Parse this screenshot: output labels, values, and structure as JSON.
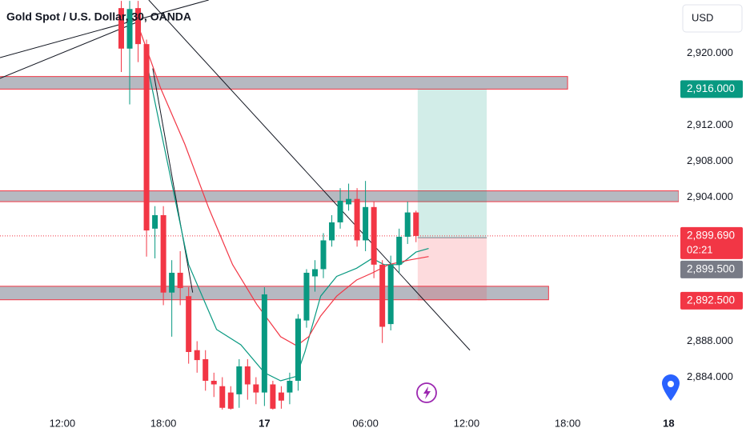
{
  "chart_data": {
    "type": "candlestick",
    "title": "Gold Spot / U.S. Dollar, 30, OANDA",
    "currency": "USD",
    "up_color": "#089981",
    "down_color": "#f23645",
    "xlim": [
      8.3,
      48.6
    ],
    "ylim": [
      2880.4,
      2925.9
    ],
    "xticks": [
      {
        "value": 12,
        "label": "12:00"
      },
      {
        "value": 18,
        "label": "18:00"
      },
      {
        "value": 24,
        "label": "17"
      },
      {
        "value": 30,
        "label": "06:00"
      },
      {
        "value": 36,
        "label": "12:00"
      },
      {
        "value": 42,
        "label": "18:00"
      },
      {
        "value": 48,
        "label": "18"
      }
    ],
    "yticks": [
      {
        "value": 2884,
        "label": "2,884.000"
      },
      {
        "value": 2888,
        "label": "2,888.000"
      },
      {
        "value": 2904,
        "label": "2,904.000"
      },
      {
        "value": 2908,
        "label": "2,908.000"
      },
      {
        "value": 2912,
        "label": "2,912.000"
      },
      {
        "value": 2920,
        "label": "2,920.000"
      }
    ],
    "candles": {
      "x": [
        15.5,
        16,
        16.5,
        17,
        17.5,
        18,
        18.5,
        19,
        19.5,
        20,
        20.5,
        21,
        21.5,
        22,
        22.5,
        23,
        23.5,
        24,
        24.5,
        25,
        25.5,
        26,
        26.5,
        27,
        27.5,
        28,
        28.5,
        29,
        29.5,
        30,
        30.5,
        31,
        31.5,
        32,
        32.5,
        33
      ],
      "open": [
        2925,
        2920.5,
        2925,
        2921,
        2900.5,
        2902,
        2893.4,
        2895.6,
        2893,
        2887,
        2886,
        2883.6,
        2883,
        2882.3,
        2882.1,
        2885.2,
        2883.2,
        2882.3,
        2883.2,
        2882.3,
        2882.3,
        2883.6,
        2890.3,
        2895.2,
        2896,
        2899.2,
        2901.2,
        2903.2,
        2903.8,
        2899.2,
        2902.9,
        2896.5,
        2889.9,
        2896.5,
        2899.6,
        2902.3
      ],
      "high": [
        2925.8,
        2925.8,
        2925.8,
        2921.5,
        2903,
        2903,
        2897,
        2898,
        2894,
        2888,
        2887,
        2884.5,
        2884,
        2883,
        2886,
        2886,
        2884,
        2894,
        2883.6,
        2883,
        2884.5,
        2891,
        2896,
        2897,
        2900,
        2902,
        2905,
        2905.5,
        2905,
        2905.8,
        2903.5,
        2897,
        2897.5,
        2900.5,
        2903.5,
        2902.5
      ],
      "low": [
        2917.9,
        2914.3,
        2919,
        2897.4,
        2897.2,
        2892,
        2888.5,
        2892,
        2885.5,
        2884.5,
        2882.5,
        2881.8,
        2880.4,
        2880.4,
        2880.6,
        2881.5,
        2881,
        2880.8,
        2880.4,
        2880.5,
        2881,
        2882.5,
        2889.5,
        2893.5,
        2895,
        2898.5,
        2900.5,
        2902.5,
        2898.5,
        2898,
        2895,
        2887.8,
        2889.2,
        2895.5,
        2898.8,
        2899
      ],
      "close": [
        2920.5,
        2924.9,
        2921,
        2900.3,
        2902,
        2893.4,
        2895.6,
        2893.9,
        2886.8,
        2885.9,
        2883.6,
        2883.2,
        2880.6,
        2880.5,
        2885.2,
        2883.2,
        2882.3,
        2893.2,
        2880.5,
        2881.4,
        2883.6,
        2890.5,
        2895.6,
        2896,
        2899.2,
        2901.2,
        2903.6,
        2903.8,
        2899.2,
        2902.9,
        2896.5,
        2889.6,
        2896.5,
        2899.6,
        2902.3,
        2899.69
      ]
    },
    "moving_averages": [
      {
        "color": "#089981",
        "x": [
          17.13,
          19.5,
          21.16,
          22.6,
          24.0,
          24.96,
          25.9,
          26.4,
          27.34,
          28.29,
          29.47,
          30.4,
          31.1,
          32.06,
          33.0,
          33.75
        ],
        "values": [
          2917.9,
          2896.5,
          2889.3,
          2887.6,
          2884.5,
          2883.6,
          2884.1,
          2886.8,
          2893.0,
          2895.2,
          2896.1,
          2897.2,
          2896.5,
          2896.5,
          2897.9,
          2898.3
        ]
      },
      {
        "color": "#f23645",
        "x": [
          16.65,
          17.84,
          19.27,
          20.69,
          22.11,
          23.54,
          24.96,
          25.91,
          26.63,
          27.34,
          28.29,
          29.47,
          30.42,
          31.37,
          32.56,
          33.75
        ],
        "values": [
          2922.3,
          2916.1,
          2909.9,
          2902.8,
          2896.5,
          2892.1,
          2888.5,
          2887.5,
          2888.5,
          2890.8,
          2893.0,
          2894.8,
          2895.6,
          2896.5,
          2897.0,
          2897.4
        ]
      }
    ],
    "trend_lines": [
      {
        "x": [
          8.3,
          20.69
        ],
        "y": [
          2919.5,
          2925.9
        ]
      },
      {
        "x": [
          8.3,
          16.65
        ],
        "y": [
          2917.2,
          2923.6
        ]
      },
      {
        "x": [
          17.13,
          36.2
        ],
        "y": [
          2925.9,
          2887.0
        ]
      },
      {
        "x": [
          17.37,
          19.74
        ],
        "y": [
          2918.3,
          2893.4
        ]
      }
    ],
    "zones": [
      {
        "top": 2917.4,
        "bottom": 2916.0,
        "x_end": 42
      },
      {
        "top": 2904.7,
        "bottom": 2903.5,
        "x_end": 48.6
      },
      {
        "top": 2894.1,
        "bottom": 2892.6,
        "x_end": 40.87
      }
    ],
    "position": {
      "x": [
        33.1,
        37.2
      ],
      "target": 2916,
      "entry": 2899.5,
      "stop": 2892.5
    },
    "price_tags": [
      {
        "value": 2916,
        "label": "2,916.000",
        "color": "#089981"
      },
      {
        "value": 2899.69,
        "label": "2,899.690",
        "sublabel": "02:21",
        "color": "#f23645"
      },
      {
        "value": 2899.5,
        "label": "2,899.500",
        "color": "#787b86"
      },
      {
        "value": 2892.5,
        "label": "2,892.500",
        "color": "#f23645"
      }
    ]
  }
}
